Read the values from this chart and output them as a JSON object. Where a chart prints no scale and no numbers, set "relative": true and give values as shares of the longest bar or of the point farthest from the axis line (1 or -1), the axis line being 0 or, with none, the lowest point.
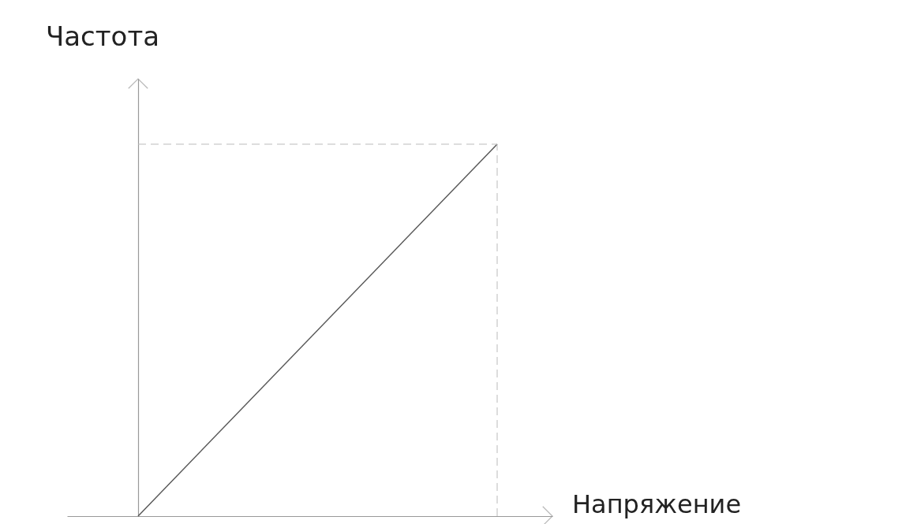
{
  "chart_data": {
    "type": "line",
    "relative": true,
    "xlabel": "Напряжение",
    "ylabel": "Частота",
    "categories": [
      null,
      null
    ],
    "series": [
      {
        "color": "#555555",
        "values": [
          0,
          1
        ]
      }
    ],
    "ref_lines": [
      {
        "axis": "y",
        "value": 1,
        "color": "#bbbbbb",
        "line_style": "dashed"
      }
    ],
    "marker": "none",
    "line_style": "solid"
  }
}
